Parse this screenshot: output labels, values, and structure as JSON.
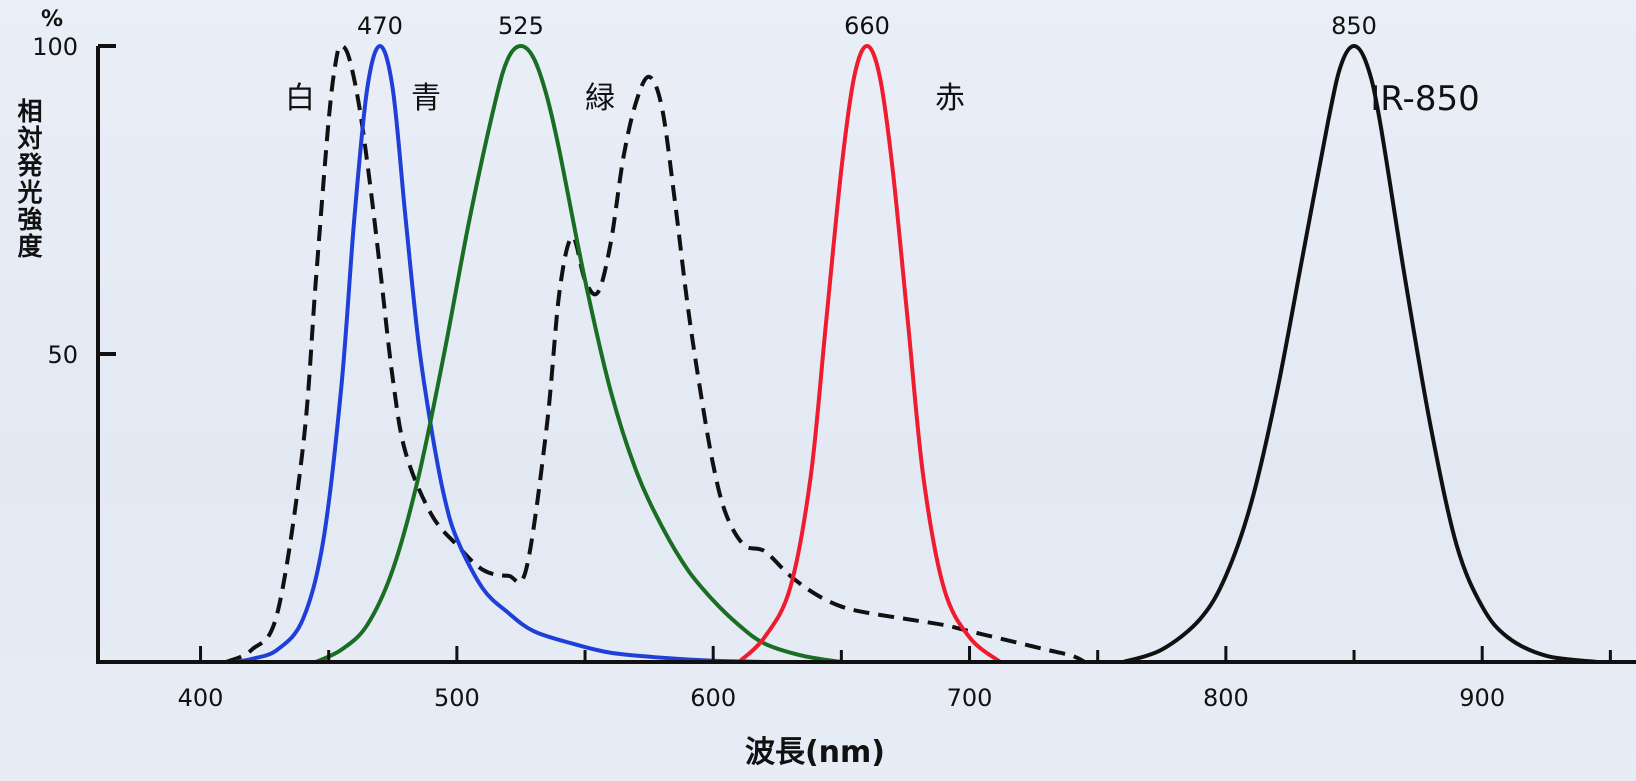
{
  "chart_data": {
    "type": "line",
    "title": "",
    "xlabel": "波長(nm)",
    "ylabel": "相対発光強度",
    "yunit": "%",
    "xlim": [
      360,
      960
    ],
    "ylim": [
      0,
      100
    ],
    "x_ticks": [
      400,
      500,
      600,
      700,
      800,
      900
    ],
    "x_minor_ticks": [
      450,
      550,
      650,
      750,
      850,
      950
    ],
    "y_ticks": [
      50,
      100
    ],
    "grid": false,
    "peak_labels": [
      {
        "label": "470",
        "x": 470
      },
      {
        "label": "525",
        "x": 525
      },
      {
        "label": "660",
        "x": 660
      },
      {
        "label": "850",
        "x": 850
      }
    ],
    "series": [
      {
        "name": "白",
        "color": "#111111",
        "dashed": true,
        "x": [
          410,
          420,
          430,
          440,
          445,
          450,
          453,
          455,
          458,
          462,
          466,
          470,
          475,
          480,
          490,
          500,
          510,
          520,
          527,
          535,
          540,
          545,
          550,
          555,
          560,
          565,
          570,
          575,
          580,
          585,
          590,
          595,
          600,
          605,
          612,
          620,
          630,
          640,
          650,
          660,
          675,
          690,
          700,
          710,
          720,
          730,
          740,
          745
        ],
        "values": [
          0,
          2,
          8,
          35,
          62,
          88,
          98,
          100,
          98,
          90,
          78,
          64,
          46,
          34,
          24,
          19,
          15,
          14,
          15,
          38,
          60,
          69,
          62,
          60,
          68,
          82,
          91,
          95,
          90,
          75,
          58,
          44,
          32,
          24,
          19,
          18,
          14,
          11,
          9,
          8,
          7,
          6,
          5,
          4,
          3,
          2,
          1,
          0
        ]
      },
      {
        "name": "青",
        "color": "#1f3fd8",
        "dashed": false,
        "x": [
          413,
          420,
          430,
          440,
          448,
          455,
          460,
          465,
          470,
          475,
          480,
          485,
          490,
          495,
          500,
          510,
          520,
          530,
          545,
          560,
          580,
          600,
          620
        ],
        "values": [
          0,
          0.5,
          2,
          7,
          20,
          45,
          72,
          93,
          100,
          93,
          72,
          52,
          38,
          27,
          20,
          12,
          8,
          5,
          3,
          1.5,
          0.7,
          0.2,
          0
        ]
      },
      {
        "name": "緑",
        "color": "#1a6e23",
        "dashed": false,
        "x": [
          445,
          455,
          465,
          475,
          485,
          495,
          505,
          515,
          520,
          525,
          530,
          535,
          540,
          550,
          560,
          570,
          580,
          590,
          600,
          610,
          620,
          635,
          650
        ],
        "values": [
          0,
          2,
          6,
          15,
          30,
          50,
          72,
          91,
          98,
          100,
          98,
          92,
          83,
          62,
          44,
          31,
          22,
          15,
          10,
          6,
          3,
          1,
          0
        ]
      },
      {
        "name": "赤",
        "color": "#ee1c2e",
        "dashed": false,
        "x": [
          610,
          620,
          630,
          638,
          644,
          650,
          655,
          660,
          665,
          670,
          676,
          682,
          690,
          700,
          712
        ],
        "values": [
          0,
          4,
          12,
          30,
          55,
          80,
          95,
          100,
          95,
          80,
          55,
          30,
          12,
          4,
          0
        ]
      },
      {
        "name": "IR-850",
        "color": "#111111",
        "dashed": false,
        "x": [
          760,
          775,
          790,
          800,
          810,
          820,
          830,
          840,
          845,
          850,
          855,
          860,
          870,
          880,
          890,
          900,
          910,
          925,
          945
        ],
        "values": [
          0,
          2,
          7,
          14,
          26,
          44,
          66,
          88,
          97,
          100,
          97,
          88,
          62,
          38,
          19,
          9,
          4,
          1,
          0
        ]
      }
    ]
  }
}
